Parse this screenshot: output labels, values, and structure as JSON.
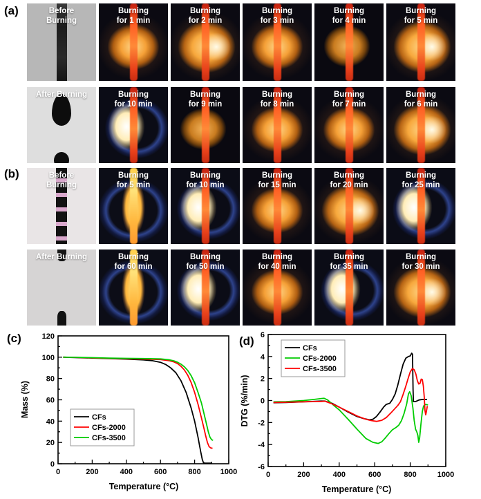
{
  "photo_panels": [
    {
      "label": "(a)",
      "rows": [
        [
          {
            "caption": "Before\nBurning",
            "look": "specimen-a"
          },
          {
            "caption": "Burning\nfor 1 min",
            "look": "flame-o1"
          },
          {
            "caption": "Burning\nfor 2 min",
            "look": "flame-o2"
          },
          {
            "caption": "Burning\nfor 3 min",
            "look": "flame-o1"
          },
          {
            "caption": "Burning\nfor 4 min",
            "look": "flame-dim"
          },
          {
            "caption": "Burning\nfor 5 min",
            "look": "flame-o2"
          }
        ],
        [
          {
            "caption": "After Burning",
            "look": "specimen-a-after"
          },
          {
            "caption": "Burning\nfor 10 min",
            "look": "flame-wb"
          },
          {
            "caption": "Burning\nfor 9 min",
            "look": "flame-dim"
          },
          {
            "caption": "Burning\nfor 8 min",
            "look": "flame-o1"
          },
          {
            "caption": "Burning\nfor 7 min",
            "look": "flame-o1"
          },
          {
            "caption": "Burning\nfor 6 min",
            "look": "flame-o2"
          }
        ]
      ]
    },
    {
      "label": "(b)",
      "rows": [
        [
          {
            "caption": "Before\nBurning",
            "look": "specimen-b"
          },
          {
            "caption": "Burning\nfor 5 min",
            "look": "flame-yb"
          },
          {
            "caption": "Burning\nfor 10 min",
            "look": "flame-wb"
          },
          {
            "caption": "Burning\nfor 15 min",
            "look": "flame-o1"
          },
          {
            "caption": "Burning\nfor 20 min",
            "look": "flame-o2"
          },
          {
            "caption": "Burning\nfor 25 min",
            "look": "flame-wb"
          }
        ],
        [
          {
            "caption": "After Burning",
            "look": "specimen-b-after"
          },
          {
            "caption": "Burning\nfor 60 min",
            "look": "flame-yb"
          },
          {
            "caption": "Burning\nfor 50 min",
            "look": "flame-wb"
          },
          {
            "caption": "Burning\nfor 40 min",
            "look": "flame-o1"
          },
          {
            "caption": "Burning\nfor 35 min",
            "look": "flame-wb"
          },
          {
            "caption": "Burning\nfor 30 min",
            "look": "flame-o2"
          }
        ]
      ]
    }
  ],
  "chart_data": [
    {
      "type": "line",
      "panel_label": "(c)",
      "xlabel": "Temperature (°C)",
      "ylabel": "Mass (%)",
      "xlim": [
        0,
        1000
      ],
      "ylim": [
        0,
        120
      ],
      "xticks": [
        0,
        200,
        400,
        600,
        800,
        1000
      ],
      "yticks": [
        0,
        20,
        40,
        60,
        80,
        100,
        120
      ],
      "xminor": 100,
      "yminor": 10,
      "grid": false,
      "legend_position": "center-left",
      "series": [
        {
          "name": "CFs",
          "color": "#000000",
          "points": [
            [
              30,
              100
            ],
            [
              100,
              99.7
            ],
            [
              200,
              99.2
            ],
            [
              300,
              98.7
            ],
            [
              400,
              98.2
            ],
            [
              500,
              97.5
            ],
            [
              550,
              96.8
            ],
            [
              600,
              95.2
            ],
            [
              630,
              93.2
            ],
            [
              660,
              90
            ],
            [
              690,
              85.5
            ],
            [
              720,
              78
            ],
            [
              750,
              67
            ],
            [
              780,
              52
            ],
            [
              800,
              40
            ],
            [
              820,
              25
            ],
            [
              835,
              12
            ],
            [
              845,
              4
            ],
            [
              852,
              1
            ],
            [
              860,
              0.6
            ],
            [
              880,
              0.6
            ],
            [
              900,
              0.6
            ]
          ]
        },
        {
          "name": "CFs-2000",
          "color": "#ff0000",
          "points": [
            [
              30,
              100
            ],
            [
              100,
              99.8
            ],
            [
              200,
              99.4
            ],
            [
              300,
              98.9
            ],
            [
              400,
              98.5
            ],
            [
              500,
              98.2
            ],
            [
              600,
              97.8
            ],
            [
              650,
              96.8
            ],
            [
              680,
              95.5
            ],
            [
              700,
              94
            ],
            [
              720,
              91.5
            ],
            [
              740,
              88
            ],
            [
              760,
              83
            ],
            [
              780,
              76
            ],
            [
              800,
              67
            ],
            [
              820,
              56
            ],
            [
              840,
              43
            ],
            [
              855,
              33
            ],
            [
              865,
              26
            ],
            [
              875,
              20
            ],
            [
              885,
              16
            ],
            [
              895,
              14.8
            ],
            [
              905,
              14.5
            ]
          ]
        },
        {
          "name": "CFs-3500",
          "color": "#00cc00",
          "points": [
            [
              30,
              100
            ],
            [
              100,
              99.9
            ],
            [
              200,
              99.6
            ],
            [
              300,
              99.2
            ],
            [
              400,
              98.9
            ],
            [
              500,
              98.7
            ],
            [
              600,
              98.4
            ],
            [
              650,
              97.6
            ],
            [
              680,
              96.5
            ],
            [
              700,
              95.3
            ],
            [
              720,
              93.5
            ],
            [
              740,
              91
            ],
            [
              760,
              87.5
            ],
            [
              780,
              82.5
            ],
            [
              800,
              76
            ],
            [
              820,
              67
            ],
            [
              840,
              57
            ],
            [
              855,
              47
            ],
            [
              870,
              37
            ],
            [
              880,
              30
            ],
            [
              890,
              25
            ],
            [
              900,
              22.5
            ],
            [
              908,
              22
            ]
          ]
        }
      ]
    },
    {
      "type": "line",
      "panel_label": "(d)",
      "xlabel": "Temperature (°C)",
      "ylabel": "DTG (%/min)",
      "xlim": [
        0,
        1000
      ],
      "ylim": [
        -6,
        6
      ],
      "xticks": [
        0,
        200,
        400,
        600,
        800,
        1000
      ],
      "yticks": [
        -6,
        -4,
        -2,
        0,
        2,
        4,
        6
      ],
      "xminor": 100,
      "yminor": 1,
      "grid": false,
      "legend_position": "top-left",
      "series": [
        {
          "name": "CFs",
          "color": "#000000",
          "points": [
            [
              30,
              -0.2
            ],
            [
              100,
              -0.18
            ],
            [
              200,
              -0.12
            ],
            [
              300,
              -0.05
            ],
            [
              320,
              -0.05
            ],
            [
              360,
              -0.25
            ],
            [
              400,
              -0.6
            ],
            [
              450,
              -1.05
            ],
            [
              500,
              -1.45
            ],
            [
              540,
              -1.65
            ],
            [
              570,
              -1.75
            ],
            [
              590,
              -1.7
            ],
            [
              610,
              -1.45
            ],
            [
              630,
              -1.05
            ],
            [
              650,
              -0.6
            ],
            [
              665,
              -0.35
            ],
            [
              685,
              -0.25
            ],
            [
              700,
              0.1
            ],
            [
              715,
              0.6
            ],
            [
              730,
              1.4
            ],
            [
              745,
              2.4
            ],
            [
              760,
              3.3
            ],
            [
              775,
              3.85
            ],
            [
              790,
              4.0
            ],
            [
              800,
              4.05
            ],
            [
              808,
              4.3
            ],
            [
              813,
              4.2
            ],
            [
              816,
              1.0
            ],
            [
              818,
              -0.1
            ],
            [
              830,
              -0.1
            ],
            [
              850,
              0.05
            ],
            [
              870,
              0.1
            ],
            [
              895,
              0.1
            ]
          ]
        },
        {
          "name": "CFs-2000",
          "color": "#00cc00",
          "points": [
            [
              30,
              -0.12
            ],
            [
              100,
              -0.1
            ],
            [
              200,
              0.0
            ],
            [
              260,
              0.1
            ],
            [
              300,
              0.18
            ],
            [
              315,
              0.2
            ],
            [
              335,
              0.05
            ],
            [
              370,
              -0.45
            ],
            [
              400,
              -0.85
            ],
            [
              450,
              -1.7
            ],
            [
              500,
              -2.6
            ],
            [
              550,
              -3.45
            ],
            [
              590,
              -3.8
            ],
            [
              620,
              -3.9
            ],
            [
              640,
              -3.75
            ],
            [
              660,
              -3.4
            ],
            [
              680,
              -3.0
            ],
            [
              700,
              -2.65
            ],
            [
              720,
              -2.45
            ],
            [
              735,
              -2.25
            ],
            [
              750,
              -1.85
            ],
            [
              765,
              -1.2
            ],
            [
              780,
              -0.3
            ],
            [
              790,
              0.6
            ],
            [
              797,
              0.8
            ],
            [
              805,
              0.45
            ],
            [
              815,
              -0.7
            ],
            [
              822,
              -1.8
            ],
            [
              830,
              -2.6
            ],
            [
              838,
              -2.9
            ],
            [
              843,
              -3.2
            ],
            [
              848,
              -3.8
            ],
            [
              853,
              -3.4
            ],
            [
              860,
              -2.2
            ],
            [
              868,
              -1.0
            ],
            [
              875,
              -0.5
            ],
            [
              885,
              -0.35
            ],
            [
              900,
              -0.4
            ]
          ]
        },
        {
          "name": "CFs-3500",
          "color": "#ff0000",
          "points": [
            [
              30,
              -0.18
            ],
            [
              100,
              -0.16
            ],
            [
              200,
              -0.12
            ],
            [
              300,
              -0.08
            ],
            [
              320,
              -0.06
            ],
            [
              360,
              -0.3
            ],
            [
              400,
              -0.6
            ],
            [
              450,
              -1.0
            ],
            [
              500,
              -1.4
            ],
            [
              550,
              -1.7
            ],
            [
              580,
              -1.82
            ],
            [
              610,
              -1.9
            ],
            [
              640,
              -1.8
            ],
            [
              665,
              -1.55
            ],
            [
              690,
              -1.15
            ],
            [
              710,
              -0.8
            ],
            [
              730,
              -0.45
            ],
            [
              745,
              -0.1
            ],
            [
              760,
              0.55
            ],
            [
              775,
              1.3
            ],
            [
              790,
              2.1
            ],
            [
              800,
              2.6
            ],
            [
              812,
              2.9
            ],
            [
              822,
              2.8
            ],
            [
              832,
              2.4
            ],
            [
              840,
              1.8
            ],
            [
              848,
              1.5
            ],
            [
              855,
              1.55
            ],
            [
              862,
              1.95
            ],
            [
              868,
              1.9
            ],
            [
              874,
              1.3
            ],
            [
              879,
              0.3
            ],
            [
              883,
              -0.9
            ],
            [
              887,
              -1.3
            ],
            [
              891,
              -1.0
            ],
            [
              896,
              -0.5
            ]
          ]
        }
      ]
    }
  ]
}
